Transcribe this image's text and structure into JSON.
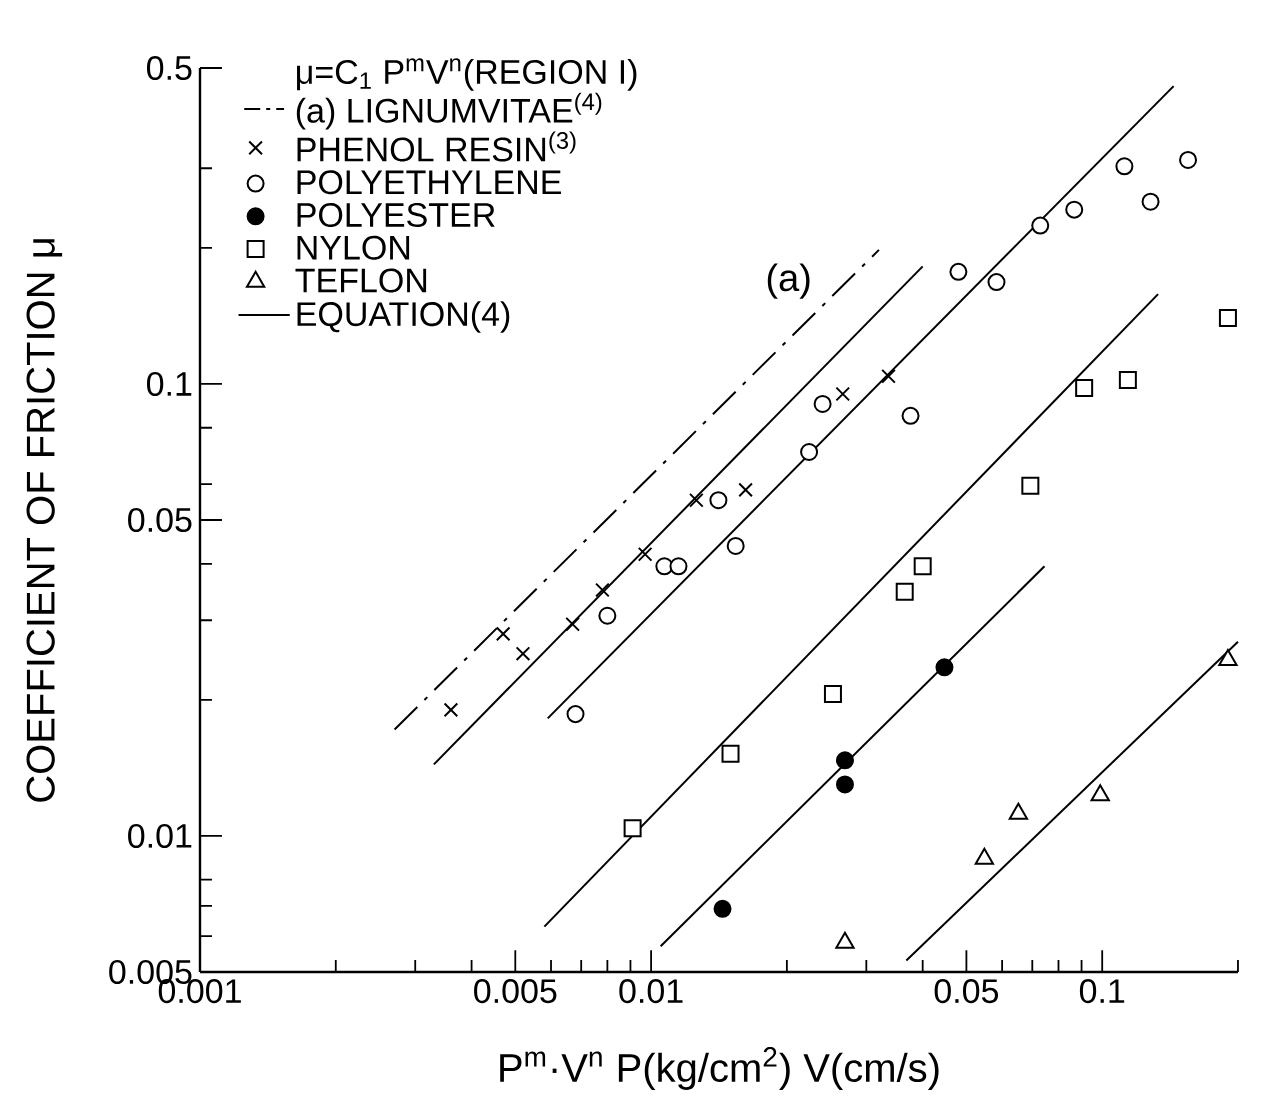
{
  "chart_data": {
    "type": "scatter",
    "log": "xy",
    "legend": "top left",
    "legend_title": "μ=C$_{1}$ P$^{m}$V$^{n}$(REGION I)",
    "xlabel": "P$^{m}$·V$^{n}$  P(kg/cm$^{2}$)  V(cm/s)",
    "ylabel": "COEFFICIENT OF FRICTION  μ",
    "xlim": [
      0.001,
      0.2
    ],
    "ylim": [
      0.005,
      0.5
    ],
    "xticks": [
      0.001,
      {
        "value": 0.002,
        "label": null
      },
      {
        "value": 0.003,
        "label": null
      },
      {
        "value": 0.004,
        "label": null
      },
      0.005,
      {
        "value": 0.006,
        "label": null
      },
      {
        "value": 0.007,
        "label": null
      },
      {
        "value": 0.008,
        "label": null
      },
      {
        "value": 0.009,
        "label": null
      },
      0.01,
      {
        "value": 0.02,
        "label": null
      },
      {
        "value": 0.03,
        "label": null
      },
      {
        "value": 0.04,
        "label": null
      },
      0.05,
      {
        "value": 0.06,
        "label": null
      },
      {
        "value": 0.07,
        "label": null
      },
      {
        "value": 0.08,
        "label": null
      },
      {
        "value": 0.09,
        "label": null
      },
      0.1,
      {
        "value": 0.2,
        "label": null
      }
    ],
    "yticks": [
      0.005,
      {
        "value": 0.006,
        "label": null
      },
      {
        "value": 0.007,
        "label": null
      },
      {
        "value": 0.008,
        "label": null
      },
      0.01,
      {
        "value": 0.02,
        "label": null
      },
      {
        "value": 0.03,
        "label": null
      },
      {
        "value": 0.04,
        "label": null
      },
      0.05,
      {
        "value": 0.06,
        "label": null
      },
      {
        "value": 0.08,
        "label": null
      },
      0.1,
      {
        "value": 0.2,
        "label": null
      },
      {
        "value": 0.3,
        "label": null
      },
      0.5
    ],
    "annotations": [
      "(a)"
    ],
    "series": [
      {
        "name": "(a) LIGNUMVITAE$^{(4)}$",
        "type": "line",
        "line_style": "dashdot",
        "color": "#000000",
        "x": [
          0.0027,
          0.032
        ],
        "values": [
          0.0172,
          0.198
        ]
      },
      {
        "name": "PHENOL RESIN$^{(3)}$",
        "type": "scatter",
        "marker": "cross",
        "color": "#000000",
        "x": [
          0.0036,
          0.0047,
          0.0052,
          0.0067,
          0.0078,
          0.0097,
          0.0126,
          0.0162,
          0.0266,
          0.0336
        ],
        "values": [
          0.019,
          0.028,
          0.0253,
          0.0294,
          0.035,
          0.042,
          0.0553,
          0.0583,
          0.095,
          0.104
        ]
      },
      {
        "name": "POLYETHYLENE",
        "type": "scatter",
        "marker": "circle",
        "color": "#000000",
        "x": [
          0.0068,
          0.008,
          0.0107,
          0.0115,
          0.0141,
          0.0154,
          0.0224,
          0.024,
          0.0376,
          0.048,
          0.0583,
          0.0729,
          0.0867,
          0.112,
          0.128,
          0.155
        ],
        "values": [
          0.0186,
          0.0307,
          0.0395,
          0.0395,
          0.0553,
          0.0438,
          0.0707,
          0.0903,
          0.085,
          0.177,
          0.168,
          0.224,
          0.243,
          0.303,
          0.253,
          0.313
        ]
      },
      {
        "name": "POLYESTER",
        "type": "scatter",
        "marker": "circle-filled",
        "color": "#000000",
        "x": [
          0.0144,
          0.0269,
          0.0269,
          0.0447
        ],
        "values": [
          0.0069,
          0.0147,
          0.013,
          0.0236
        ]
      },
      {
        "name": "NYLON",
        "type": "scatter",
        "marker": "square",
        "color": "#000000",
        "x": [
          0.0091,
          0.015,
          0.0253,
          0.0365,
          0.04,
          0.0693,
          0.0912,
          0.114,
          0.19
        ],
        "values": [
          0.0104,
          0.0152,
          0.0206,
          0.0347,
          0.0395,
          0.0595,
          0.098,
          0.102,
          0.14
        ]
      },
      {
        "name": "TEFLON",
        "type": "scatter",
        "marker": "triangle",
        "color": "#000000",
        "x": [
          0.0269,
          0.0548,
          0.0652,
          0.099,
          0.19
        ],
        "values": [
          0.0058,
          0.0089,
          0.0112,
          0.0123,
          0.0245
        ]
      },
      {
        "name": "EQUATION(4)",
        "type": "line",
        "line_style": "solid",
        "color": "#000000",
        "x": [
          0.0033,
          0.04
        ],
        "values": [
          0.0144,
          0.182
        ]
      },
      {
        "type": "line",
        "line_style": "solid",
        "color": "#000000",
        "x": [
          0.0059,
          0.144
        ],
        "values": [
          0.0182,
          0.456
        ]
      },
      {
        "type": "line",
        "line_style": "solid",
        "color": "#000000",
        "x": [
          0.0058,
          0.133
        ],
        "values": [
          0.0063,
          0.158
        ]
      },
      {
        "type": "line",
        "line_style": "solid",
        "color": "#000000",
        "x": [
          0.0105,
          0.0745
        ],
        "values": [
          0.0057,
          0.0395
        ]
      },
      {
        "type": "line",
        "line_style": "solid",
        "color": "#000000",
        "x": [
          0.0368,
          0.2
        ],
        "values": [
          0.0053,
          0.0269
        ]
      }
    ]
  }
}
